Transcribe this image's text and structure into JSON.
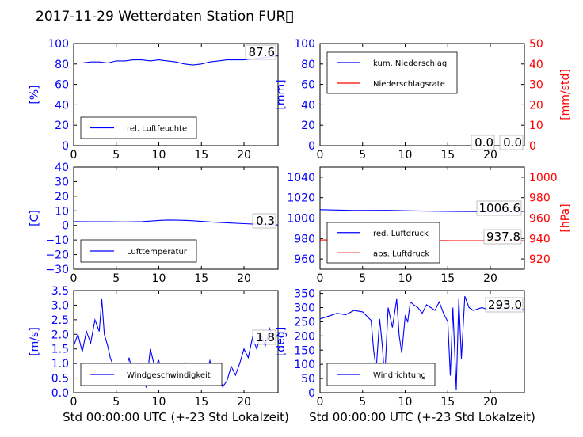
{
  "figure": {
    "title": "2017-11-29 Wetterdaten Station FUR\u0000"
  },
  "colors": {
    "primary": "#0000ff",
    "secondary": "#ff0000"
  },
  "chart_data": [
    {
      "type": "line",
      "xlim": [
        0,
        24
      ],
      "x_ticks": [
        "0",
        "5",
        "10",
        "15",
        "20"
      ],
      "ylim": [
        0,
        100
      ],
      "y_ticks": [
        "0",
        "20",
        "40",
        "60",
        "80",
        "100"
      ],
      "ylabel": "[%]",
      "legend_position": "lower-left",
      "grid": false,
      "series": [
        {
          "name": "rel. Luftfeuchte",
          "color": "#0000ff",
          "x": [
            0,
            1,
            2,
            3,
            4,
            5,
            6,
            7,
            8,
            9,
            10,
            11,
            12,
            13,
            14,
            15,
            16,
            17,
            18,
            19,
            20,
            21,
            22,
            23,
            24
          ],
          "y": [
            81,
            81,
            82,
            82,
            81,
            83,
            83,
            84,
            84,
            83,
            84,
            83,
            82,
            80,
            79,
            80,
            82,
            83,
            84,
            84,
            84,
            85,
            86,
            87,
            88
          ]
        }
      ],
      "annotations": [
        "87.6"
      ]
    },
    {
      "type": "line",
      "xlim": [
        0,
        24
      ],
      "x_ticks": [
        "0",
        "5",
        "10",
        "15",
        "20"
      ],
      "ylim": [
        0,
        100
      ],
      "y_ticks": [
        "0",
        "20",
        "40",
        "60",
        "80",
        "100"
      ],
      "ylabel": "[mm]",
      "ylim2": [
        0,
        50
      ],
      "y2_ticks": [
        "0",
        "10",
        "20",
        "30",
        "40",
        "50"
      ],
      "ylabel2": "[mm/std]",
      "legend_position": "top-left",
      "grid": false,
      "series": [
        {
          "name": "kum. Niederschlag",
          "color": "#0000ff",
          "x": [
            0,
            24
          ],
          "y": [
            0,
            0
          ]
        },
        {
          "name": "Niederschlagsrate",
          "color": "#ff0000",
          "x": [
            0,
            24
          ],
          "y": [
            0,
            0
          ]
        }
      ],
      "annotations": [
        "0.0",
        "0.0"
      ]
    },
    {
      "type": "line",
      "xlim": [
        0,
        24
      ],
      "x_ticks": [
        "0",
        "5",
        "10",
        "15",
        "20"
      ],
      "ylim": [
        -30,
        40
      ],
      "y_ticks": [
        "−30",
        "−20",
        "−10",
        "0",
        "10",
        "20",
        "30",
        "40"
      ],
      "ylabel": "[C]",
      "legend_position": "lower-left",
      "grid": false,
      "series": [
        {
          "name": "Lufttemperatur",
          "color": "#0000ff",
          "x": [
            0,
            2,
            4,
            6,
            8,
            9,
            10,
            11,
            12,
            13,
            14,
            15,
            16,
            18,
            20,
            22,
            24
          ],
          "y": [
            2.6,
            2.5,
            2.5,
            2.4,
            2.6,
            3.0,
            3.4,
            3.7,
            3.6,
            3.5,
            3.2,
            2.8,
            2.4,
            1.8,
            1.2,
            0.7,
            0.3
          ]
        }
      ],
      "annotations": [
        "0.3"
      ]
    },
    {
      "type": "line",
      "xlim": [
        0,
        24
      ],
      "x_ticks": [
        "0",
        "5",
        "10",
        "15",
        "20"
      ],
      "ylim": [
        950,
        1050
      ],
      "y_ticks": [
        "960",
        "980",
        "1000",
        "1020",
        "1040"
      ],
      "ylim2": [
        910,
        1010
      ],
      "y2_ticks": [
        "920",
        "940",
        "960",
        "980",
        "1000"
      ],
      "ylabel2": "[hPa]",
      "legend_position": "lower-left",
      "grid": false,
      "series": [
        {
          "name": "red. Luftdruck",
          "color": "#0000ff",
          "x": [
            0,
            4,
            8,
            12,
            16,
            20,
            24
          ],
          "y": [
            1008.3,
            1007.5,
            1007.6,
            1006.9,
            1006.5,
            1006.4,
            1006.6
          ]
        },
        {
          "name": "abs. Luftdruck",
          "color": "#ff0000",
          "axis": "y2",
          "x": [
            0,
            8,
            16,
            24
          ],
          "y": [
            938.6,
            938.3,
            937.9,
            937.8
          ]
        }
      ],
      "annotations": [
        "1006.6",
        "937.8"
      ]
    },
    {
      "type": "line",
      "xlim": [
        0,
        24
      ],
      "x_ticks": [
        "0",
        "5",
        "10",
        "15",
        "20"
      ],
      "ylim": [
        0,
        3.5
      ],
      "y_ticks": [
        "0.0",
        "0.5",
        "1.0",
        "1.5",
        "2.0",
        "2.5",
        "3.0",
        "3.5"
      ],
      "ylabel": "[m/s]",
      "xlabel": "Std 00:00:00 UTC (+-23 Std Lokalzeit)",
      "legend_position": "lower-left",
      "grid": false,
      "series": [
        {
          "name": "Windgeschwindigkeit",
          "color": "#0000ff",
          "x": [
            0,
            0.5,
            1,
            1.5,
            2,
            2.5,
            3,
            3.3,
            3.6,
            4,
            4.3,
            4.7,
            5,
            5.5,
            6,
            6.5,
            7,
            7.5,
            8,
            8.5,
            9,
            9.5,
            10,
            10.5,
            11,
            11.5,
            12,
            12.5,
            13,
            13.5,
            14,
            14.5,
            15,
            15.5,
            16,
            16.5,
            17,
            17.5,
            18,
            18.5,
            19,
            19.5,
            20,
            20.5,
            21,
            21.5,
            22,
            22.5,
            23,
            23.5,
            24
          ],
          "y": [
            1.6,
            2.0,
            1.4,
            2.1,
            1.7,
            2.5,
            2.1,
            3.2,
            2.0,
            1.6,
            1.2,
            0.9,
            0.5,
            0.4,
            0.6,
            1.2,
            0.6,
            0.3,
            0.5,
            0.2,
            1.5,
            0.9,
            1.1,
            0.5,
            0.8,
            0.4,
            0.9,
            0.5,
            1.0,
            0.6,
            0.8,
            0.4,
            0.9,
            0.6,
            1.1,
            0.5,
            0.7,
            0.2,
            0.4,
            0.9,
            0.6,
            1.0,
            1.5,
            1.2,
            1.9,
            1.5,
            2.0,
            1.6,
            2.2,
            1.8,
            2.0
          ]
        }
      ],
      "annotations": [
        "1.8"
      ]
    },
    {
      "type": "line",
      "xlim": [
        0,
        24
      ],
      "x_ticks": [
        "0",
        "5",
        "10",
        "15",
        "20"
      ],
      "ylim": [
        0,
        360
      ],
      "y_ticks": [
        "0",
        "50",
        "100",
        "150",
        "200",
        "250",
        "300",
        "350"
      ],
      "ylabel": "[deg]",
      "xlabel": "Std 00:00:00 UTC (+-23 Std Lokalzeit)",
      "legend_position": "lower-left",
      "grid": false,
      "series": [
        {
          "name": "Windrichtung",
          "color": "#0000ff",
          "x": [
            0,
            1,
            2,
            3,
            4,
            5,
            5.5,
            6,
            6.3,
            6.6,
            7,
            7.3,
            7.6,
            8,
            8.5,
            9,
            9.3,
            9.6,
            10,
            10.3,
            10.6,
            11,
            11.5,
            12,
            12.5,
            13,
            13.5,
            14,
            14.5,
            15,
            15.3,
            15.6,
            16,
            16.3,
            16.6,
            17,
            17.5,
            18,
            19,
            20,
            21,
            22,
            23,
            24
          ],
          "y": [
            260,
            270,
            280,
            275,
            290,
            285,
            270,
            255,
            150,
            80,
            260,
            170,
            50,
            300,
            230,
            330,
            200,
            140,
            270,
            250,
            320,
            310,
            300,
            280,
            310,
            300,
            290,
            320,
            280,
            250,
            60,
            300,
            10,
            330,
            120,
            340,
            300,
            290,
            300,
            290,
            300,
            290,
            295,
            293
          ]
        }
      ],
      "annotations": [
        "293.0"
      ]
    }
  ]
}
